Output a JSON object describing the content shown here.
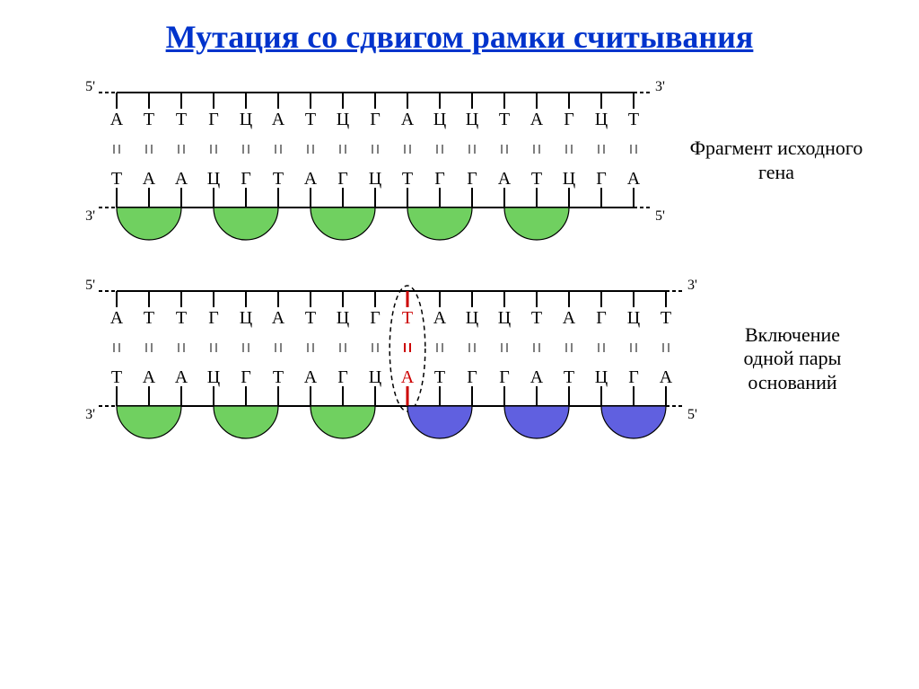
{
  "title": "Мутация со сдвигом рамки считывания",
  "colors": {
    "title": "#0033cc",
    "strand_line": "#000000",
    "base_text": "#000000",
    "insert_text": "#cc0000",
    "insert_line": "#cc0000",
    "arc_green": "#70d060",
    "arc_blue": "#6060e0",
    "arc_stroke": "#000000",
    "label_text": "#000000"
  },
  "geometry": {
    "strand_width": 600,
    "strand_height": 180,
    "base_spacing": 36,
    "tick_len_up": 18,
    "tick_len_mid": 6,
    "gap_between_strands": 44,
    "arc_radius": 27,
    "line_weight": 2,
    "font_size_base": 20,
    "font_size_end": 16,
    "label_font_size": 22,
    "insert_line_weight": 3
  },
  "diagram1": {
    "end_labels": {
      "tl": "5'",
      "tr": "3'",
      "bl": "3'",
      "br": "5'"
    },
    "top": [
      "А",
      "Т",
      "Т",
      "Г",
      "Ц",
      "А",
      "Т",
      "Ц",
      "Г",
      "А",
      "Ц",
      "Ц",
      "Т",
      "А",
      "Г",
      "Ц",
      "Т"
    ],
    "bottom": [
      "Т",
      "А",
      "А",
      "Ц",
      "Г",
      "Т",
      "А",
      "Г",
      "Ц",
      "Т",
      "Г",
      "Г",
      "А",
      "Т",
      "Ц",
      "Г",
      "А"
    ],
    "insert_index": null,
    "arcs": [
      {
        "start": 0,
        "color": "green"
      },
      {
        "start": 3,
        "color": "green"
      },
      {
        "start": 6,
        "color": "green"
      },
      {
        "start": 9,
        "color": "green"
      },
      {
        "start": 12,
        "color": "green"
      }
    ],
    "label": "Фрагмент исходного гена"
  },
  "diagram2": {
    "end_labels": {
      "tl": "5'",
      "tr": "3'",
      "bl": "3'",
      "br": "5'"
    },
    "top": [
      "А",
      "Т",
      "Т",
      "Г",
      "Ц",
      "А",
      "Т",
      "Ц",
      "Г",
      "Т",
      "А",
      "Ц",
      "Ц",
      "Т",
      "А",
      "Г",
      "Ц",
      "Т"
    ],
    "bottom": [
      "Т",
      "А",
      "А",
      "Ц",
      "Г",
      "Т",
      "А",
      "Г",
      "Ц",
      "А",
      "Т",
      "Г",
      "Г",
      "А",
      "Т",
      "Ц",
      "Г",
      "А"
    ],
    "insert_index": 9,
    "arcs": [
      {
        "start": 0,
        "color": "green"
      },
      {
        "start": 3,
        "color": "green"
      },
      {
        "start": 6,
        "color": "green"
      },
      {
        "start": 9,
        "color": "blue"
      },
      {
        "start": 12,
        "color": "blue"
      },
      {
        "start": 15,
        "color": "blue"
      }
    ],
    "label": "Включение одной пары оснований"
  }
}
